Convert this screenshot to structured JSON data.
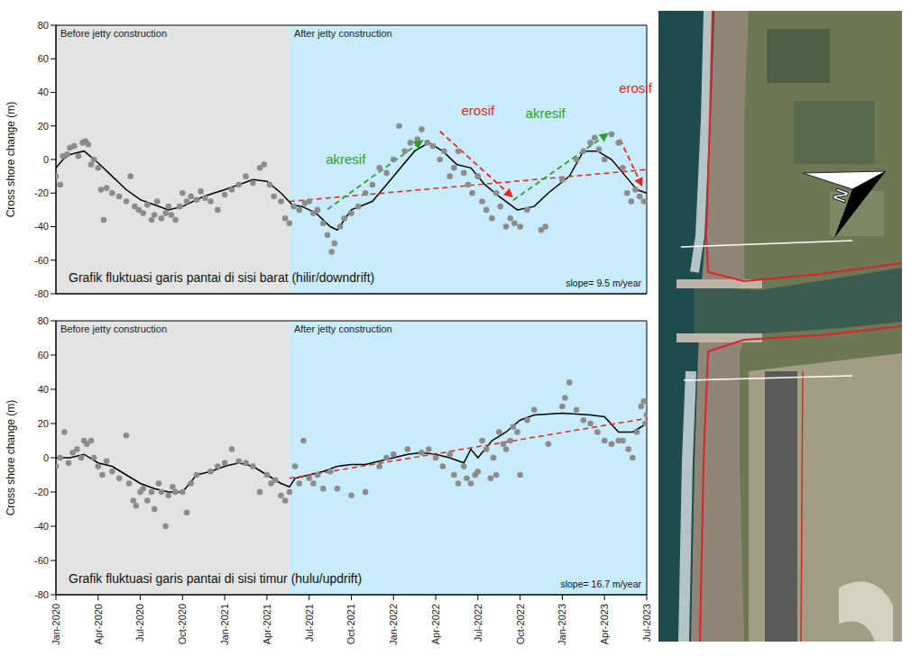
{
  "chart_data": [
    {
      "type": "scatter",
      "title": "Grafik fluktuasi garis pantai di sisi barat (hilir/downdrift)",
      "slope_label": "slope= 9.5 m/year",
      "y_label": "Cross shore change (m)",
      "xlim": [
        0,
        42
      ],
      "xticks": [
        {
          "value": 0,
          "label": "Jan-2020"
        },
        {
          "value": 3,
          "label": "Apr-2020"
        },
        {
          "value": 6,
          "label": "Jul-2020"
        },
        {
          "value": 9,
          "label": "Oct-2020"
        },
        {
          "value": 12,
          "label": "Jan-2021"
        },
        {
          "value": 15,
          "label": "Apr-2021"
        },
        {
          "value": 18,
          "label": "Jul-2021"
        },
        {
          "value": 21,
          "label": "Oct-2021"
        },
        {
          "value": 24,
          "label": "Jan-2022"
        },
        {
          "value": 27,
          "label": "Apr-2022"
        },
        {
          "value": 30,
          "label": "Jul-2022"
        },
        {
          "value": 33,
          "label": "Oct-2022"
        },
        {
          "value": 36,
          "label": "Jan-2023"
        },
        {
          "value": 39,
          "label": "Apr-2023"
        },
        {
          "value": 42,
          "label": "Jul-2023"
        }
      ],
      "ylim": [
        -80,
        80
      ],
      "yticks": [
        -80,
        -60,
        -40,
        -20,
        0,
        20,
        40,
        60,
        80
      ],
      "tick_labels": "y",
      "regions": [
        {
          "label": "Before jetty construction",
          "x": [
            0,
            16.6
          ],
          "color": "#e3e3e3"
        },
        {
          "label": "After jetty construction",
          "x": [
            16.6,
            42
          ],
          "color": "#c8ecfb"
        }
      ],
      "series": [
        {
          "type": "scatter",
          "marker": "circle",
          "color": "#8c8c8c",
          "x": [
            0,
            0.3,
            0.5,
            0.8,
            1,
            1.3,
            1.6,
            1.9,
            2.1,
            2.3,
            2.5,
            2.7,
            3,
            3.2,
            3.4,
            3.6,
            4,
            4.5,
            5,
            5.3,
            5.6,
            5.9,
            6.2,
            6.5,
            6.8,
            7,
            7.2,
            7.5,
            7.8,
            8,
            8.2,
            8.5,
            8.8,
            9,
            9.3,
            9.6,
            10,
            10.3,
            10.6,
            11,
            11.5,
            12,
            12.5,
            13,
            13.5,
            14,
            14.5,
            14.8,
            15.2,
            15.5,
            16,
            16.3,
            16.6,
            16.9,
            17.3,
            17.7,
            18,
            18.3,
            18.6,
            19,
            19.3,
            19.6,
            19.8,
            20.2,
            20.5,
            21,
            21.5,
            22,
            22.5,
            23,
            23.5,
            24,
            24.4,
            24.8,
            25.2,
            25.7,
            26,
            26.4,
            26.8,
            27.3,
            27.6,
            28,
            28.3,
            28.6,
            29,
            29.3,
            29.6,
            30,
            30.3,
            30.6,
            31,
            31.3,
            31.6,
            32,
            32.3,
            32.6,
            33,
            33.5,
            34.5,
            34.8,
            36,
            37,
            37.5,
            38,
            38.3,
            38.6,
            39,
            39.5,
            40,
            40.3,
            40.6,
            40.9,
            41.2,
            41.5,
            41.8
          ],
          "values": [
            -10,
            -15,
            2,
            3,
            7,
            8,
            2,
            10,
            11,
            9,
            -3,
            0,
            -5,
            -18,
            -36,
            -17,
            -20,
            -22,
            -25,
            -10,
            -28,
            -30,
            -32,
            -27,
            -36,
            -33,
            -25,
            -35,
            -32,
            -28,
            -33,
            -36,
            -28,
            -20,
            -25,
            -22,
            -24,
            -19,
            -23,
            -25,
            -30,
            -21,
            -18,
            -15,
            -10,
            -14,
            -5,
            -3,
            -15,
            -22,
            -25,
            -35,
            -38,
            -28,
            -30,
            -26,
            -25,
            -32,
            -30,
            -38,
            -45,
            -55,
            -50,
            -40,
            -35,
            -32,
            -28,
            -20,
            -15,
            -5,
            -8,
            0,
            20,
            5,
            10,
            12,
            18,
            10,
            8,
            0,
            5,
            -10,
            -5,
            5,
            -8,
            -15,
            -20,
            -10,
            -25,
            -30,
            -35,
            -20,
            -28,
            -40,
            -35,
            -38,
            -40,
            -30,
            -42,
            -40,
            -12,
            0,
            5,
            10,
            13,
            6,
            0,
            15,
            10,
            -5,
            -20,
            -25,
            -18,
            -22,
            -25
          ]
        },
        {
          "type": "line",
          "line_style": "solid",
          "color": "#000000",
          "x": [
            0,
            0.5,
            1,
            1.5,
            2,
            3,
            4,
            5,
            6,
            7,
            8,
            9,
            10.5,
            12,
            13,
            14,
            15,
            16,
            16.8,
            17.5,
            18.5,
            19.5,
            20,
            21,
            22.5,
            23.5,
            24.5,
            25.5,
            26.5,
            27.5,
            28.5,
            29.5,
            30.5,
            31.5,
            32.8,
            34,
            35,
            36.5,
            37.5,
            38.5,
            39.5,
            40.5,
            41.3,
            42
          ],
          "values": [
            -5,
            0,
            3,
            4,
            5,
            -2,
            -10,
            -18,
            -24,
            -27,
            -30,
            -28,
            -22,
            -18,
            -15,
            -12,
            -13,
            -20,
            -27,
            -28,
            -32,
            -40,
            -42,
            -30,
            -25,
            -15,
            -5,
            5,
            10,
            5,
            -3,
            -5,
            -15,
            -22,
            -30,
            -28,
            -20,
            -10,
            5,
            5,
            0,
            -10,
            -18,
            -20
          ]
        },
        {
          "type": "line",
          "line_style": "dashed",
          "color": "#e8261e",
          "x": [
            16.6,
            42
          ],
          "values": [
            -25,
            -6
          ]
        }
      ],
      "arrows": [
        {
          "x": [
            19.3,
            26.1
          ],
          "values": [
            -29.7,
            11.5
          ],
          "color": "#2e9e2e",
          "line_style": "dashed"
        },
        {
          "x": [
            27.3,
            32.5
          ],
          "values": [
            16.8,
            -22.7
          ],
          "color": "#e8261e",
          "line_style": "dashed"
        },
        {
          "x": [
            32.5,
            39.3
          ],
          "values": [
            -24.3,
            15.8
          ],
          "color": "#2e9e2e",
          "line_style": "dashed"
        },
        {
          "x": [
            40.1,
            41.7
          ],
          "values": [
            12,
            -16.3
          ],
          "color": "#e8261e",
          "line_style": "dashed"
        }
      ],
      "annotations": [
        {
          "text": "akresif",
          "x": 20.6,
          "y": 0,
          "color": "#2e9e2e"
        },
        {
          "text": "erosif",
          "x": 30,
          "y": 29,
          "color": "#e8261e"
        },
        {
          "text": "akresif",
          "x": 34.8,
          "y": 27.5,
          "color": "#2e9e2e"
        },
        {
          "text": "erosif",
          "x": 41.2,
          "y": 42.5,
          "color": "#e8261e"
        }
      ]
    },
    {
      "type": "scatter",
      "title": "Grafik fluktuasi garis pantai di sisi timur (hulu/updrift)",
      "slope_label": "slope= 16.7 m/year",
      "y_label": "Cross shore change (m)",
      "xlim": [
        0,
        42
      ],
      "xticks": [
        {
          "value": 0,
          "label": "Jan-2020"
        },
        {
          "value": 3,
          "label": "Apr-2020"
        },
        {
          "value": 6,
          "label": "Jul-2020"
        },
        {
          "value": 9,
          "label": "Oct-2020"
        },
        {
          "value": 12,
          "label": "Jan-2021"
        },
        {
          "value": 15,
          "label": "Apr-2021"
        },
        {
          "value": 18,
          "label": "Jul-2021"
        },
        {
          "value": 21,
          "label": "Oct-2021"
        },
        {
          "value": 24,
          "label": "Jan-2022"
        },
        {
          "value": 27,
          "label": "Apr-2022"
        },
        {
          "value": 30,
          "label": "Jul-2022"
        },
        {
          "value": 33,
          "label": "Oct-2022"
        },
        {
          "value": 36,
          "label": "Jan-2023"
        },
        {
          "value": 39,
          "label": "Apr-2023"
        },
        {
          "value": 42,
          "label": "Jul-2023"
        }
      ],
      "ylim": [
        -80,
        80
      ],
      "yticks": [
        -80,
        -60,
        -40,
        -20,
        0,
        20,
        40,
        60,
        80
      ],
      "regions": [
        {
          "label": "Before jetty construction",
          "x": [
            0,
            16.6
          ],
          "color": "#e3e3e3"
        },
        {
          "label": "After jetty construction",
          "x": [
            16.6,
            42
          ],
          "color": "#c8ecfb"
        }
      ],
      "series": [
        {
          "type": "scatter",
          "marker": "circle",
          "color": "#8c8c8c",
          "x": [
            0,
            0.3,
            0.6,
            0.9,
            1.2,
            1.5,
            1.8,
            2,
            2.2,
            2.5,
            2.7,
            3,
            3.3,
            3.6,
            4,
            4.5,
            5,
            5.2,
            5.5,
            5.7,
            6,
            6.2,
            6.5,
            6.8,
            7,
            7.3,
            7.5,
            7.8,
            8,
            8.3,
            8.5,
            9,
            9.3,
            9.6,
            10,
            11,
            11.5,
            12,
            12.5,
            13,
            13.5,
            14,
            14.5,
            15,
            15.3,
            15.6,
            16,
            16.3,
            16.6,
            17,
            17.3,
            17.6,
            18,
            18.3,
            18.6,
            19,
            19.5,
            20,
            21,
            22,
            23,
            23.5,
            24,
            25,
            26,
            26.5,
            27,
            27.5,
            28,
            28.3,
            28.6,
            29,
            29.2,
            29.5,
            29.8,
            30,
            30.3,
            30.6,
            30.9,
            31.1,
            31.3,
            31.5,
            31.8,
            32,
            32.3,
            32.5,
            32.8,
            33,
            33.5,
            34,
            35,
            36,
            36.2,
            36.5,
            37,
            37.5,
            38,
            38.5,
            39,
            39.5,
            40,
            40.3,
            40.7,
            41,
            41.3,
            41.6,
            41.8,
            41.9,
            42
          ],
          "values": [
            -5,
            0,
            15,
            -3,
            3,
            5,
            0,
            10,
            8,
            10,
            0,
            -5,
            -10,
            -2,
            -8,
            -12,
            13,
            -15,
            -25,
            -28,
            -20,
            -18,
            -25,
            -20,
            -30,
            -15,
            -20,
            -40,
            -22,
            -17,
            -20,
            -20,
            -32,
            -15,
            -10,
            -8,
            -5,
            -3,
            5,
            -2,
            -3,
            -5,
            -20,
            -10,
            -15,
            -13,
            -22,
            -25,
            -20,
            -5,
            -15,
            10,
            -12,
            -15,
            -10,
            -18,
            -8,
            -18,
            -22,
            -20,
            -5,
            0,
            2,
            5,
            3,
            5,
            0,
            -5,
            2,
            -10,
            -15,
            -5,
            -12,
            -15,
            -10,
            -8,
            10,
            5,
            -12,
            0,
            -10,
            15,
            8,
            5,
            10,
            18,
            15,
            -10,
            22,
            28,
            8,
            30,
            35,
            44,
            28,
            22,
            20,
            15,
            10,
            8,
            10,
            10,
            5,
            0,
            15,
            30,
            33,
            20,
            25
          ]
        },
        {
          "type": "line",
          "line_style": "solid",
          "color": "#000000",
          "x": [
            0,
            1,
            2,
            3,
            4,
            5,
            6,
            7,
            8,
            9,
            9.5,
            10,
            11,
            12,
            13,
            14,
            15,
            16,
            16.6,
            17,
            18,
            19,
            20,
            21,
            22,
            23,
            24,
            25,
            26,
            27,
            28,
            29,
            29.5,
            30,
            31,
            32,
            33,
            34,
            36,
            38,
            39,
            40,
            41,
            42
          ],
          "values": [
            0,
            0,
            2,
            -3,
            -5,
            -10,
            -15,
            -18,
            -20,
            -20,
            -15,
            -10,
            -8,
            -5,
            -3,
            -5,
            -10,
            -15,
            -17,
            -12,
            -10,
            -8,
            -5,
            -4,
            -4,
            -2,
            0,
            2,
            3,
            2,
            0,
            -3,
            5,
            0,
            10,
            15,
            22,
            25,
            26,
            25,
            24,
            15,
            15,
            20
          ]
        },
        {
          "type": "line",
          "line_style": "dashed",
          "color": "#e8261e",
          "x": [
            16.6,
            42
          ],
          "values": [
            -12,
            23
          ]
        }
      ]
    }
  ],
  "map": {
    "compass_label": "N"
  }
}
